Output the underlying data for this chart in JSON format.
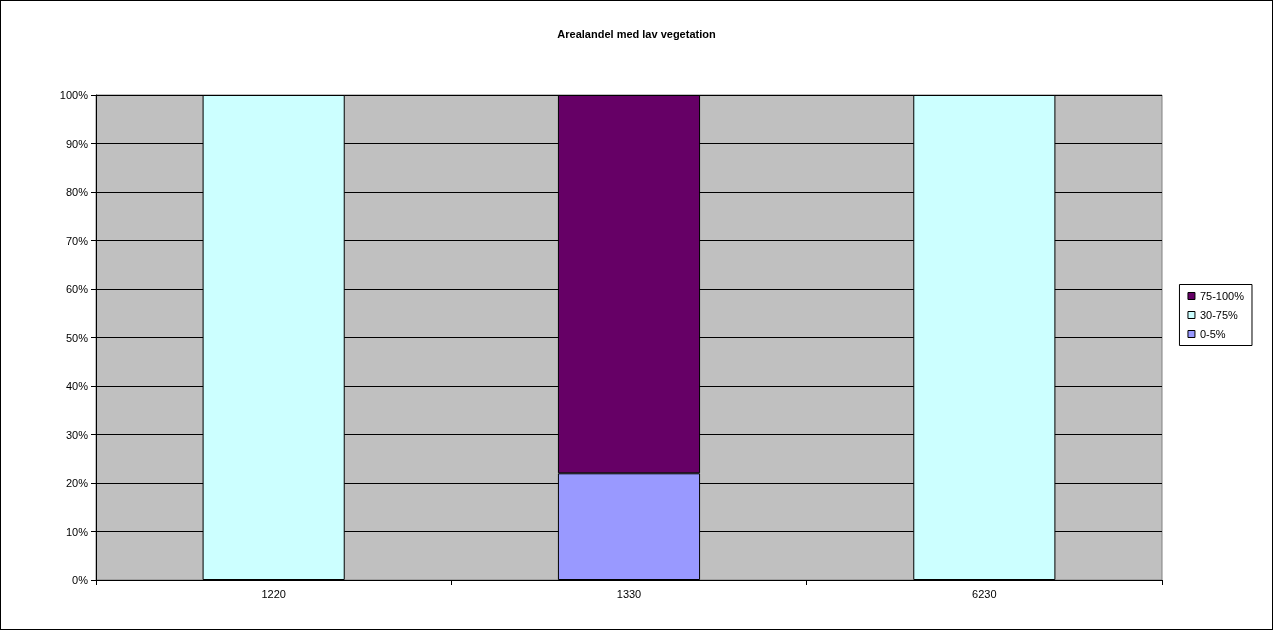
{
  "chart_data": {
    "type": "bar",
    "title": "Arealandel med lav vegetation",
    "categories": [
      "1220",
      "1330",
      "6230"
    ],
    "stacked": true,
    "series": [
      {
        "name": "0-5%",
        "color": "#9999ff",
        "values": [
          null,
          22,
          null
        ]
      },
      {
        "name": "30-75%",
        "color": "#ccffff",
        "values": [
          100,
          null,
          100
        ]
      },
      {
        "name": "75-100%",
        "color": "#660066",
        "values": [
          null,
          78,
          null
        ]
      }
    ],
    "ylim": [
      0,
      100
    ],
    "yticks": [
      {
        "value": 0,
        "label": "0%"
      },
      {
        "value": 10,
        "label": "10%"
      },
      {
        "value": 20,
        "label": "20%"
      },
      {
        "value": 30,
        "label": "30%"
      },
      {
        "value": 40,
        "label": "40%"
      },
      {
        "value": 50,
        "label": "50%"
      },
      {
        "value": 60,
        "label": "60%"
      },
      {
        "value": 70,
        "label": "70%"
      },
      {
        "value": 80,
        "label": "80%"
      },
      {
        "value": 90,
        "label": "90%"
      },
      {
        "value": 100,
        "label": "100%"
      }
    ],
    "grid": "y",
    "legend": "right"
  }
}
